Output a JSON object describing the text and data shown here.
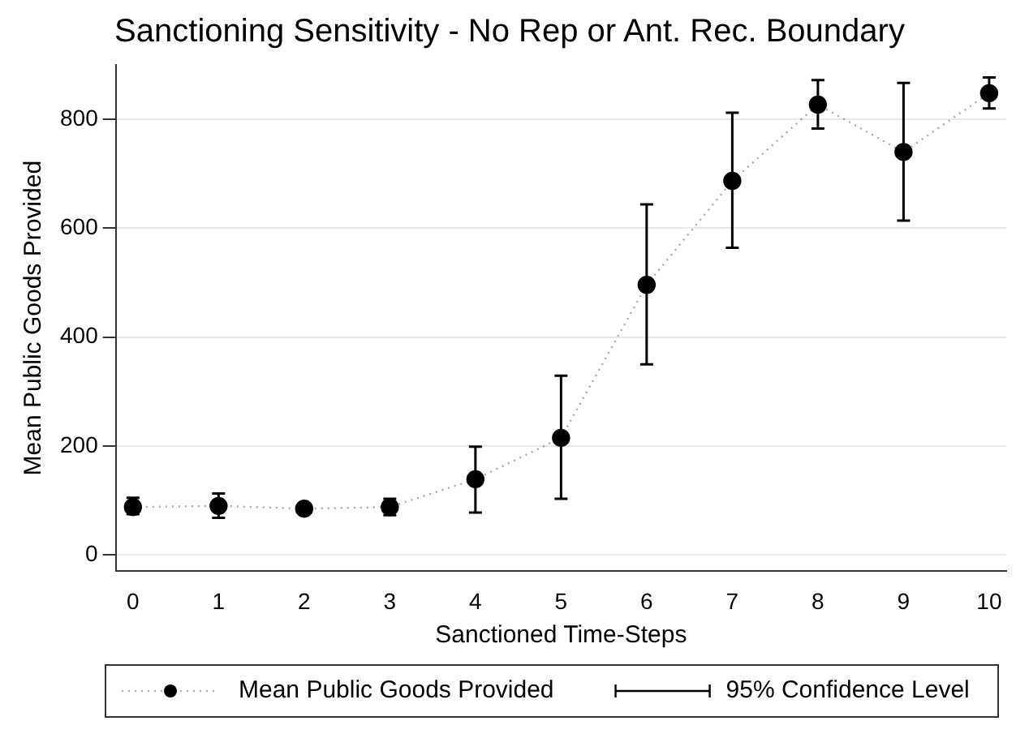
{
  "chart_data": {
    "type": "line",
    "title": "Sanctioning Sensitivity - No Rep or Ant. Rec. Boundary",
    "xlabel": "Sanctioned Time-Steps",
    "ylabel": "Mean Public Goods Provided",
    "x": [
      0,
      1,
      2,
      3,
      4,
      5,
      6,
      7,
      8,
      9,
      10
    ],
    "series": [
      {
        "name": "Mean Public Goods Provided",
        "color": "#000000",
        "values": [
          88,
          90,
          85,
          88,
          139,
          215,
          496,
          687,
          827,
          740,
          848
        ],
        "errors": [
          [
            75,
            105
          ],
          [
            68,
            113
          ],
          [
            76,
            93
          ],
          [
            73,
            103
          ],
          [
            78,
            199
          ],
          [
            103,
            329
          ],
          [
            350,
            644
          ],
          [
            564,
            812
          ],
          [
            783,
            872
          ],
          [
            614,
            867
          ],
          [
            820,
            877
          ]
        ]
      }
    ],
    "annotations": [
      "95% Confidence Level"
    ],
    "xlim": [
      -0.2,
      10.2
    ],
    "ylim": [
      -30,
      900
    ],
    "xticks": [
      0,
      1,
      2,
      3,
      4,
      5,
      6,
      7,
      8,
      9,
      10
    ],
    "yticks": [
      0,
      200,
      400,
      600,
      800
    ],
    "grid": "y",
    "legend": "bottom",
    "marker": "circle",
    "line_style": "dotted"
  }
}
